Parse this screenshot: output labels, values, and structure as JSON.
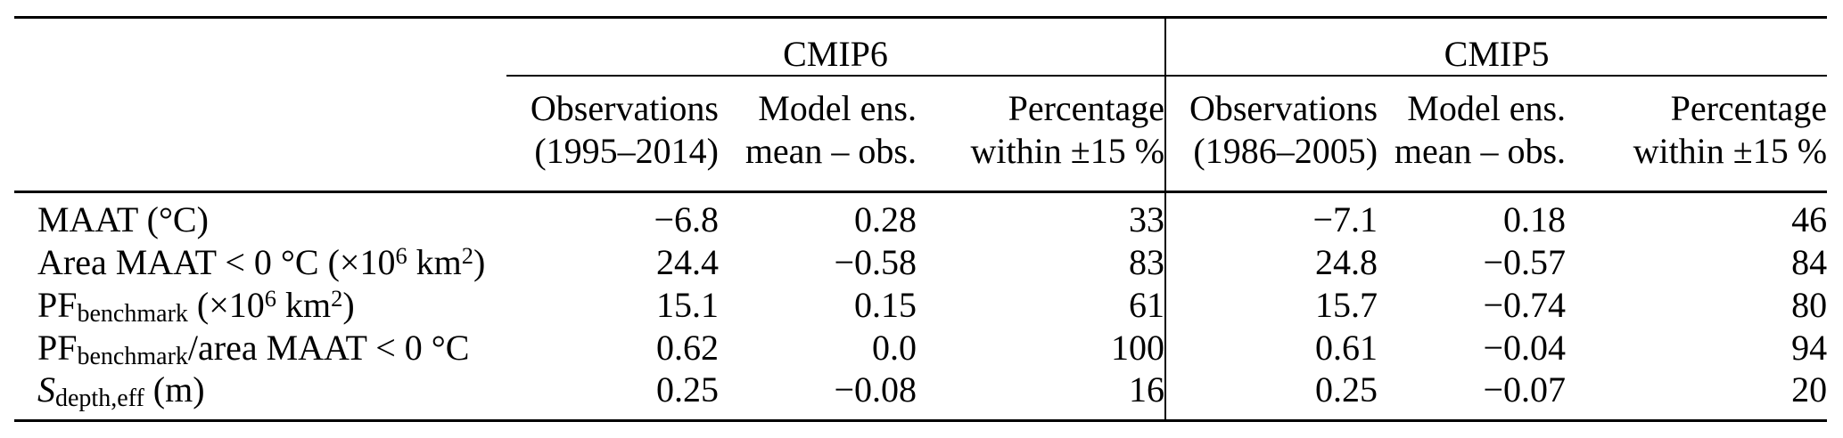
{
  "table": {
    "groups": [
      {
        "label": "CMIP6"
      },
      {
        "label": "CMIP5"
      }
    ],
    "columns": [
      {
        "line1": "Observations",
        "line2": "(1995–2014)"
      },
      {
        "line1": "Model ens.",
        "line2": "mean – obs."
      },
      {
        "line1": "Percentage",
        "line2": "within ±15 %"
      },
      {
        "line1": "Observations",
        "line2": "(1986–2005)"
      },
      {
        "line1": "Model ens.",
        "line2": "mean – obs."
      },
      {
        "line1": "Percentage",
        "line2": "within ±15 %"
      }
    ],
    "rows": [
      {
        "label_parts": [
          {
            "t": "MAAT (°C)"
          }
        ],
        "values": [
          "−6.8",
          "0.28",
          "33",
          "−7.1",
          "0.18",
          "46"
        ]
      },
      {
        "label_parts": [
          {
            "t": "Area MAAT < 0 °C (×10"
          },
          {
            "sup": "6"
          },
          {
            "t": " km"
          },
          {
            "sup": "2"
          },
          {
            "t": ")"
          }
        ],
        "values": [
          "24.4",
          "−0.58",
          "83",
          "24.8",
          "−0.57",
          "84"
        ]
      },
      {
        "label_parts": [
          {
            "t": "PF"
          },
          {
            "sub": "benchmark"
          },
          {
            "t": " (×10"
          },
          {
            "sup": "6"
          },
          {
            "t": " km"
          },
          {
            "sup": "2"
          },
          {
            "t": ")"
          }
        ],
        "values": [
          "15.1",
          "0.15",
          "61",
          "15.7",
          "−0.74",
          "80"
        ]
      },
      {
        "label_parts": [
          {
            "t": "PF"
          },
          {
            "sub": "benchmark"
          },
          {
            "t": "/area MAAT < 0 °C"
          }
        ],
        "values": [
          "0.62",
          "0.0",
          "100",
          "0.61",
          "−0.04",
          "94"
        ]
      },
      {
        "label_parts": [
          {
            "i": "S"
          },
          {
            "sub": "depth,eff"
          },
          {
            "t": " (m)"
          }
        ],
        "values": [
          "0.25",
          "−0.08",
          "16",
          "0.25",
          "−0.07",
          "20"
        ]
      }
    ]
  }
}
